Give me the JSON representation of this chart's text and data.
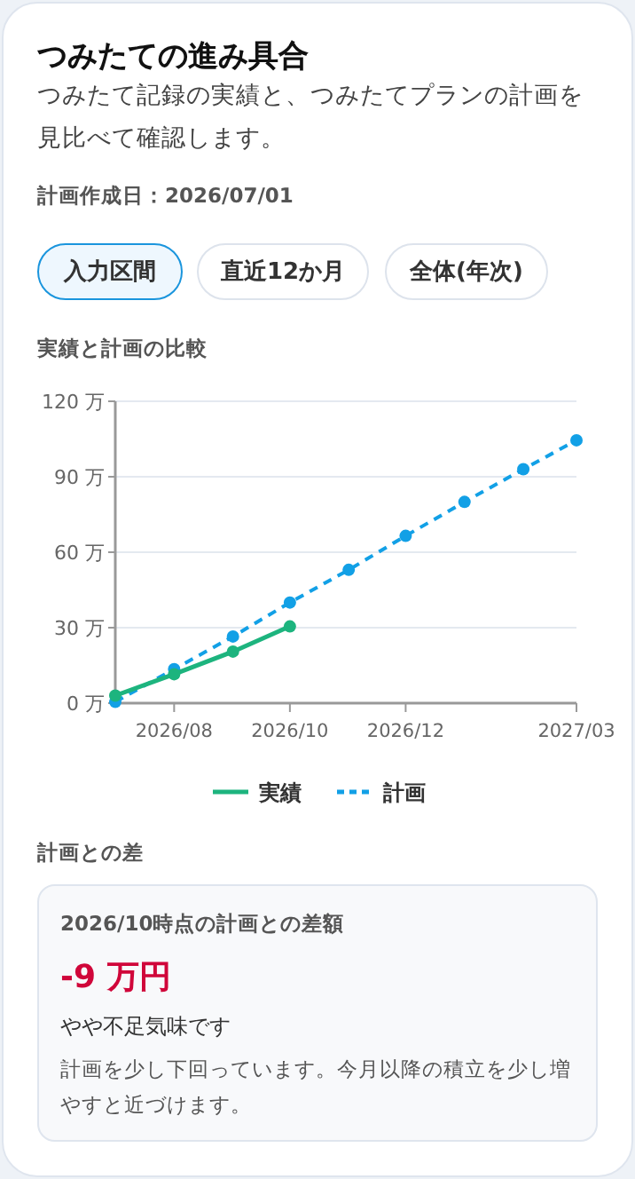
{
  "chart_data": {
    "type": "line",
    "title": "実績と計画の比較",
    "annotations": [
      "つみたての進み具合",
      "つみたて記録の実績と、つみたてプランの計画を見比べて確認します。",
      "計画作成日：2026/07/01",
      "入力区間",
      "直近12か月",
      "全体(年次)",
      "計画との差",
      "2026/10時点の計画との差額",
      "-9 万円",
      "やや不足気味です",
      "計画を少し下回っています。今月以降の積立を少し増やすと近づけます。"
    ],
    "xlim": [
      "2026-07",
      "2027-03"
    ],
    "xticks": [
      {
        "value": "2026-08",
        "label": "2026/08"
      },
      {
        "value": "2026-10",
        "label": "2026/10"
      },
      {
        "value": "2026-12",
        "label": "2026/12"
      },
      {
        "value": "2027-03",
        "label": "2027/03"
      }
    ],
    "ylim": [
      0,
      120
    ],
    "yticks": [
      {
        "value": 0,
        "label": "0 万"
      },
      {
        "value": 30,
        "label": "30 万"
      },
      {
        "value": 60,
        "label": "60 万"
      },
      {
        "value": 90,
        "label": "90 万"
      },
      {
        "value": 120,
        "label": "120 万"
      }
    ],
    "grid": "y",
    "legend": "bottom",
    "marker": "circle",
    "series": [
      {
        "name": "実績",
        "color": "#1db47e",
        "line_style": "solid",
        "x": [
          "2026-07",
          "2026-08",
          "2026-09",
          "2026-10"
        ],
        "values": [
          3,
          11.5,
          20.5,
          30.5
        ]
      },
      {
        "name": "計画",
        "color": "#12a0e6",
        "line_style": "dashed",
        "x": [
          "2026-07",
          "2026-08",
          "2026-09",
          "2026-10",
          "2026-11",
          "2026-12",
          "2027-01",
          "2027-02",
          "2027-03"
        ],
        "values": [
          0.5,
          13.5,
          26.5,
          40,
          53,
          66.5,
          80,
          93,
          104.5
        ]
      }
    ]
  }
}
